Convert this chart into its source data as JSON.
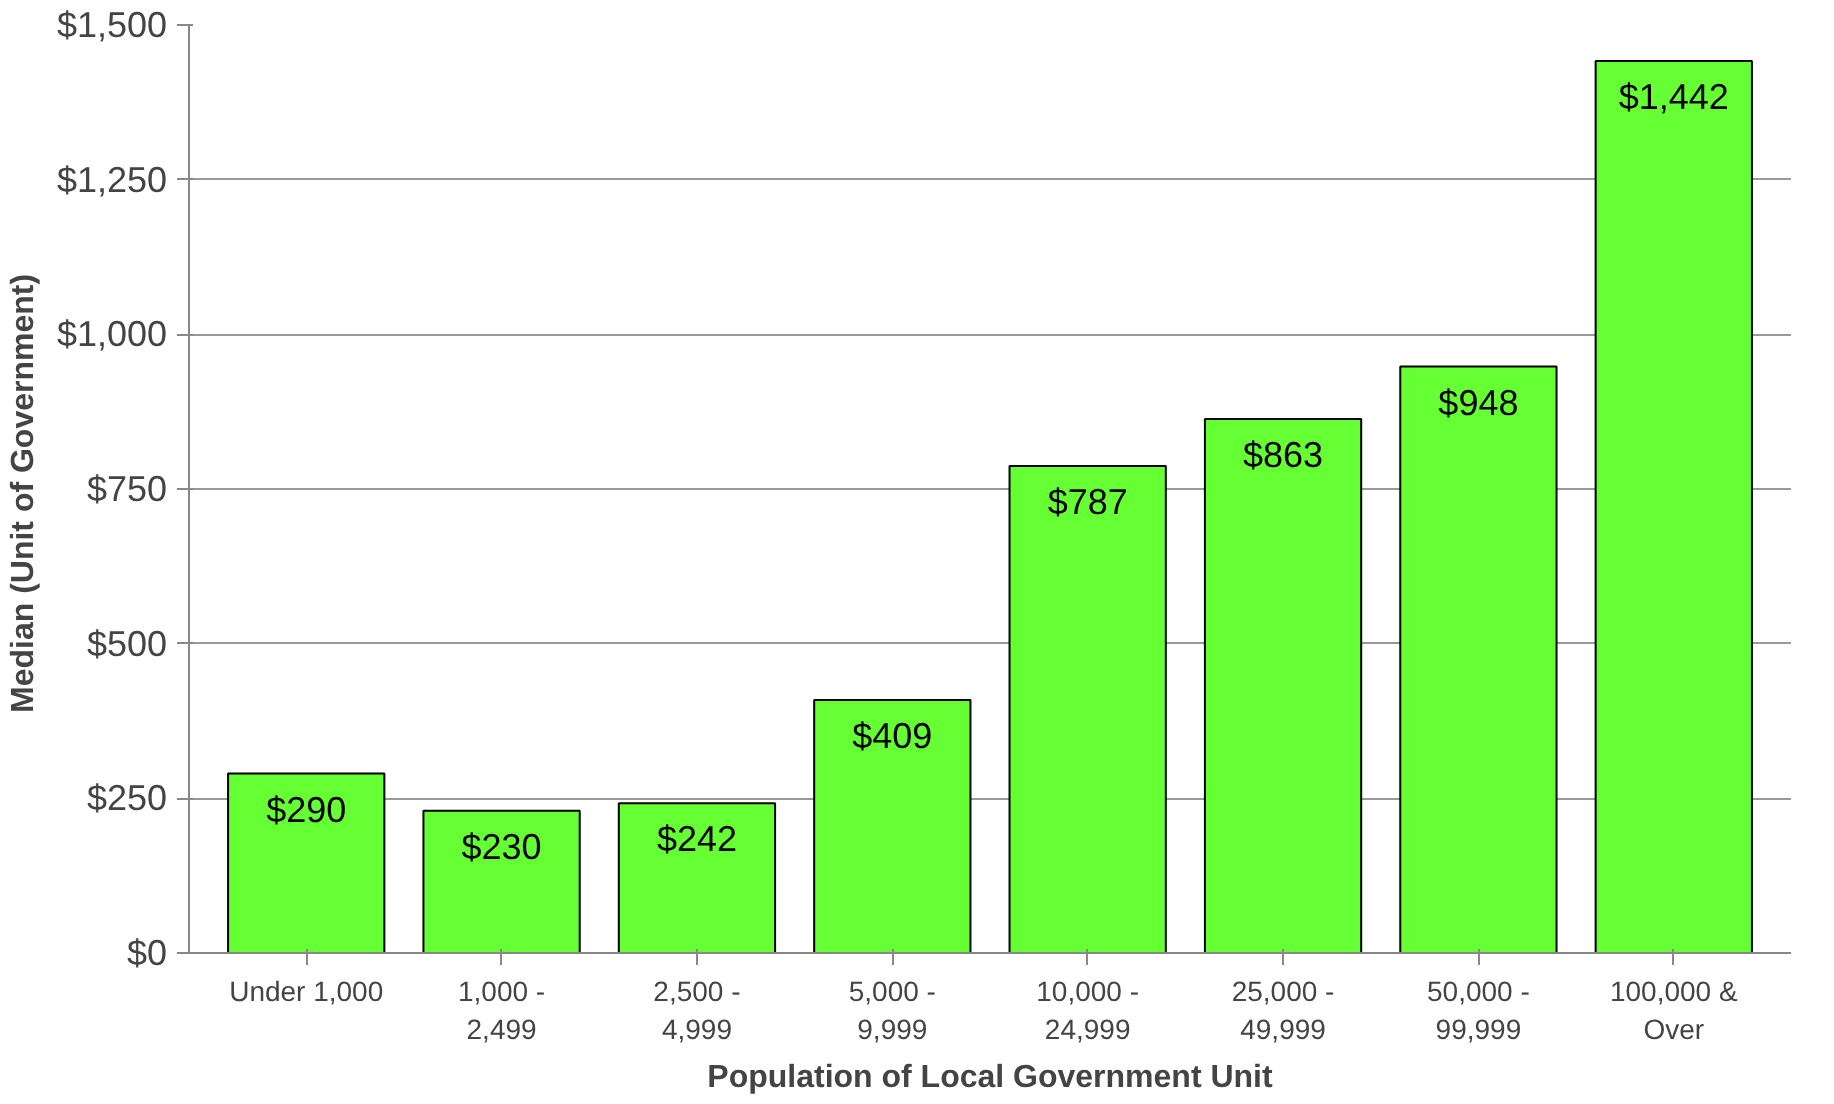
{
  "chart_data": {
    "type": "bar",
    "xlabel": "Population of Local Government Unit",
    "ylabel": "Median  (Unit of Government)",
    "categories": [
      "Under 1,000",
      "1,000 -\n2,499",
      "2,500 -\n4,999",
      "5,000 -\n9,999",
      "10,000 -\n24,999",
      "25,000 -\n49,999",
      "50,000 -\n99,999",
      "100,000 &\nOver"
    ],
    "values": [
      290,
      230,
      242,
      409,
      787,
      863,
      948,
      1442
    ],
    "value_labels": [
      "$290",
      "$230",
      "$242",
      "$409",
      "$787",
      "$863",
      "$948",
      "$1,442"
    ],
    "color": "#66ff33",
    "ylim": [
      0,
      1500
    ],
    "yticks": [
      {
        "value": 0,
        "label": "$0"
      },
      {
        "value": 250,
        "label": "$250"
      },
      {
        "value": 500,
        "label": "$500"
      },
      {
        "value": 750,
        "label": "$750"
      },
      {
        "value": 1000,
        "label": "$1,000"
      },
      {
        "value": 1250,
        "label": "$1,250"
      },
      {
        "value": 1500,
        "label": "$1,500"
      }
    ],
    "grid": "y"
  }
}
